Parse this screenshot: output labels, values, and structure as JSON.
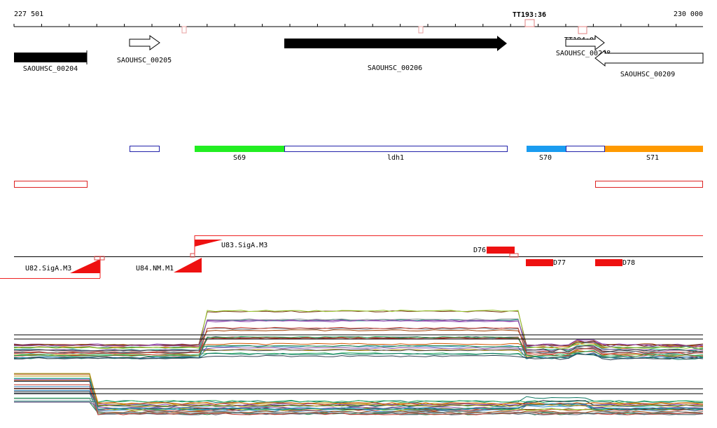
{
  "ruler": {
    "start": "227 501",
    "end": "230 000",
    "terminators": [
      "TT193:36",
      "TT194:02"
    ]
  },
  "genes": [
    "SAOUHSC_00204",
    "SAOUHSC_00205",
    "SAOUHSC_00206",
    "SAOUHSC_00208",
    "SAOUHSC_00209"
  ],
  "segments": [
    "S69",
    "ldh1",
    "S70",
    "S71"
  ],
  "promoters": [
    "U82.SigA.M3",
    "U83.SigA.M3",
    "U84.NM.M1"
  ],
  "transcripts": [
    "D76",
    "D77",
    "D78"
  ]
}
